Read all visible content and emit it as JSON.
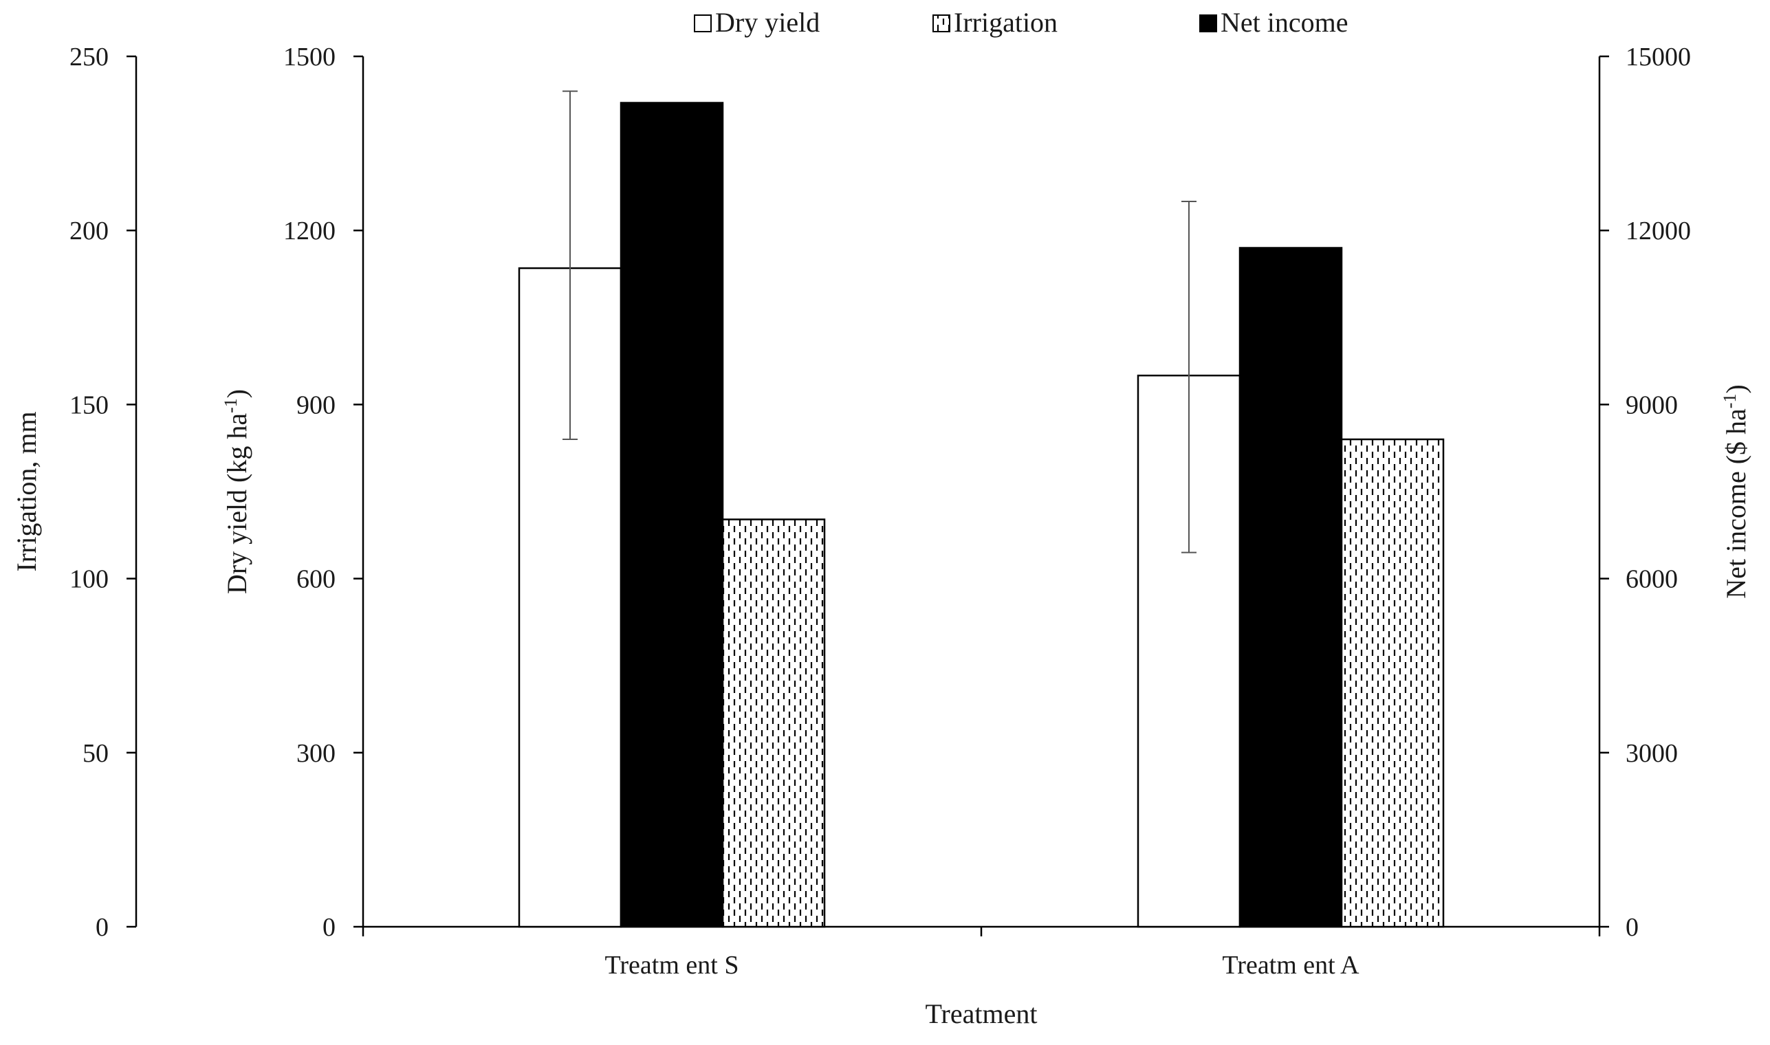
{
  "chart_data": {
    "type": "bar",
    "categories": [
      "Treatm ent S",
      "Treatm ent A"
    ],
    "series": [
      {
        "name": "Dry yield",
        "axis": "left-inner",
        "values": [
          1135,
          950
        ],
        "error_low": [
          840,
          645
        ],
        "error_high": [
          1440,
          1250
        ],
        "fill": "#ffffff"
      },
      {
        "name": "Net income",
        "axis": "right",
        "values": [
          14200,
          11700
        ],
        "fill": "#000000"
      },
      {
        "name": "Irrigation",
        "axis": "left-outer",
        "values": [
          117,
          140
        ],
        "fill": "dashed-pattern"
      }
    ],
    "axes": {
      "irrigation": {
        "label": "Irrigation,  mm",
        "ylim": [
          0,
          250
        ],
        "ticks": [
          "0",
          "50",
          "100",
          "150",
          "200",
          "250"
        ]
      },
      "dry_yield": {
        "label": "Dry yield (kg ha",
        "label_sup": "-1",
        "label_end": ")",
        "ylim": [
          0,
          1500
        ],
        "ticks": [
          "0",
          "300",
          "600",
          "900",
          "1200",
          "1500"
        ]
      },
      "net_income": {
        "label": "Net income ($ ha",
        "label_sup": "-1",
        "label_end": ")",
        "ylim": [
          0,
          15000
        ],
        "ticks": [
          "0",
          "3000",
          "6000",
          "9000",
          "12000",
          "15000"
        ]
      }
    },
    "xlabel": "Treatment",
    "legend": {
      "placement": "top-center",
      "entries": [
        "Dry yield",
        "Irrigation",
        "Net income"
      ]
    },
    "grid": false
  }
}
